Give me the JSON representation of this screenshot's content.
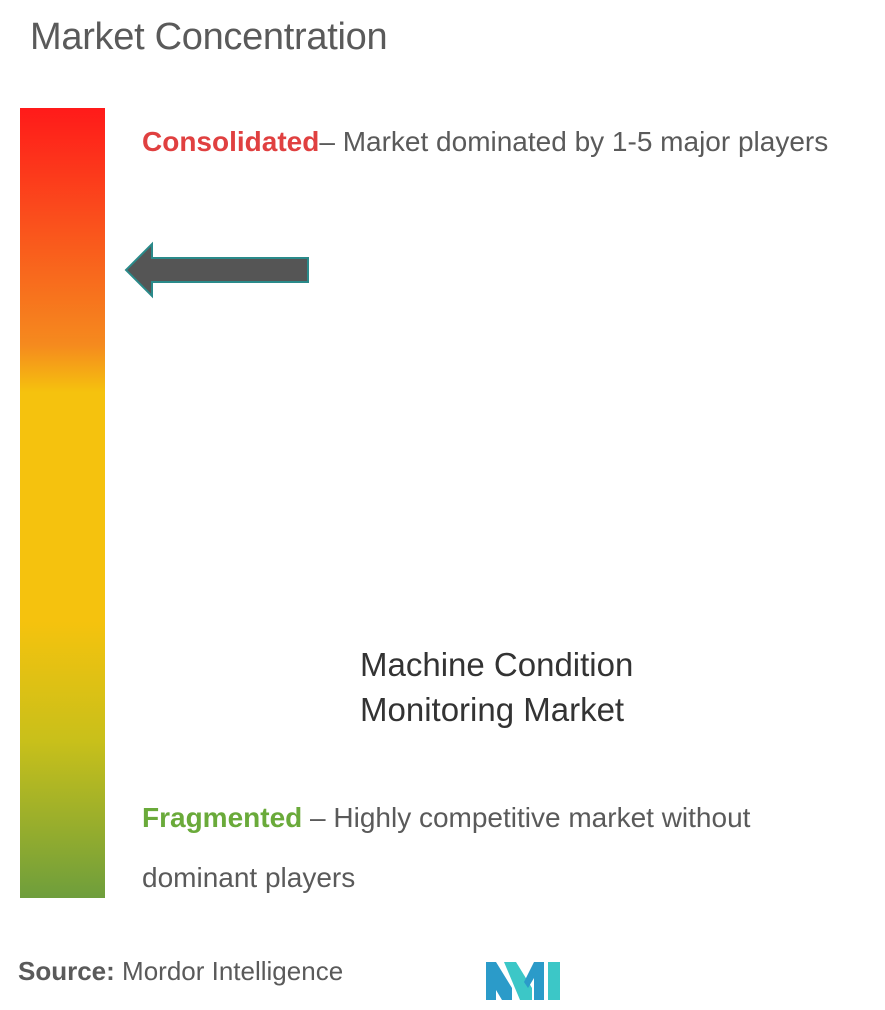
{
  "title": "Market Concentration",
  "scale": {
    "colors": {
      "top": "#ff1a1a",
      "upper": "#f58a1e",
      "middle": "#f5c20e",
      "lower": "#c9c01a",
      "bottom": "#6e9e3c"
    },
    "indicator_level": 0.8
  },
  "consolidated": {
    "label": "Consolidated",
    "description": "– Market dominated by 1-5 major players",
    "color": "#e04040"
  },
  "fragmented": {
    "label": "Fragmented",
    "description": " – Highly competitive market without dominant players",
    "color": "#6aaa3a"
  },
  "market": {
    "line1": "Machine Condition",
    "line2": "Monitoring Market"
  },
  "source": {
    "label": "Source:",
    "value": " Mordor Intelligence"
  },
  "logo": {
    "icon": "mordor-intelligence-logo",
    "colors": [
      "#2b9bc9",
      "#3cc7c7"
    ]
  },
  "arrow": {
    "icon": "left-arrow-icon",
    "fill": "#555555",
    "stroke": "#2a8a8a"
  }
}
